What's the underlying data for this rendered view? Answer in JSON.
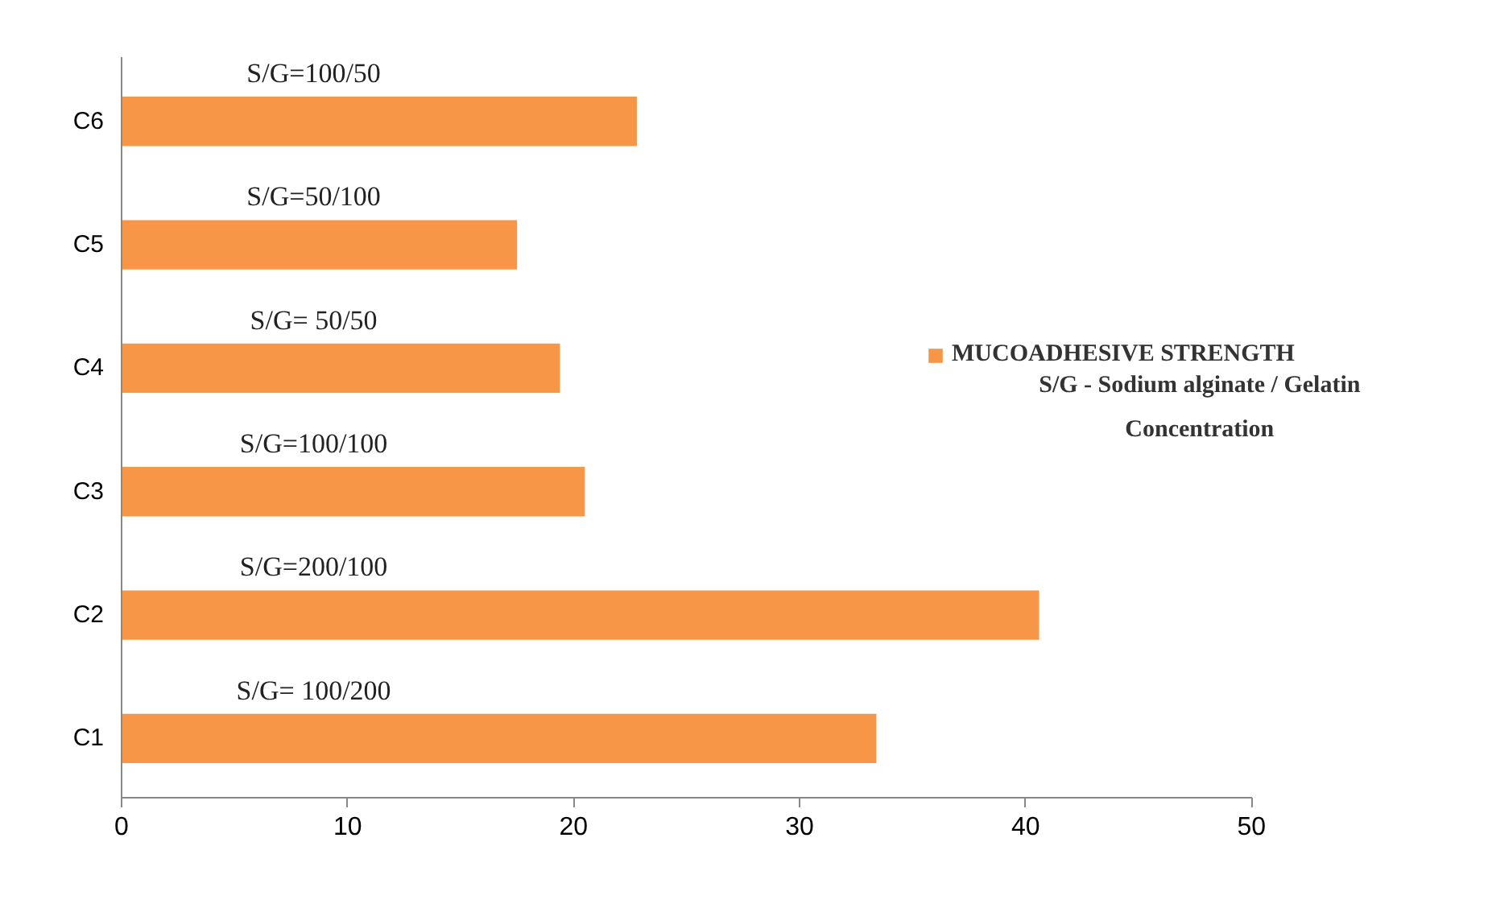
{
  "chart_data": {
    "type": "bar",
    "orientation": "horizontal",
    "categories": [
      "C6",
      "C5",
      "C4",
      "C3",
      "C2",
      "C1"
    ],
    "series": [
      {
        "name": "MUCOADHESIVE STRENGTH",
        "color": "#f79646",
        "values": [
          22.8,
          17.5,
          19.4,
          20.5,
          40.6,
          33.4
        ]
      }
    ],
    "xlim": [
      0,
      50
    ],
    "xticks": [
      0,
      10,
      20,
      30,
      40,
      50
    ],
    "grid": false,
    "legend": "right",
    "annotations": [
      "S/G=100/50",
      "S/G=50/100",
      "S/G= 50/50",
      "S/G=100/100",
      "S/G=200/100",
      "S/G= 100/200",
      "S/G - Sodium alginate / Gelatin\nConcentration"
    ]
  }
}
